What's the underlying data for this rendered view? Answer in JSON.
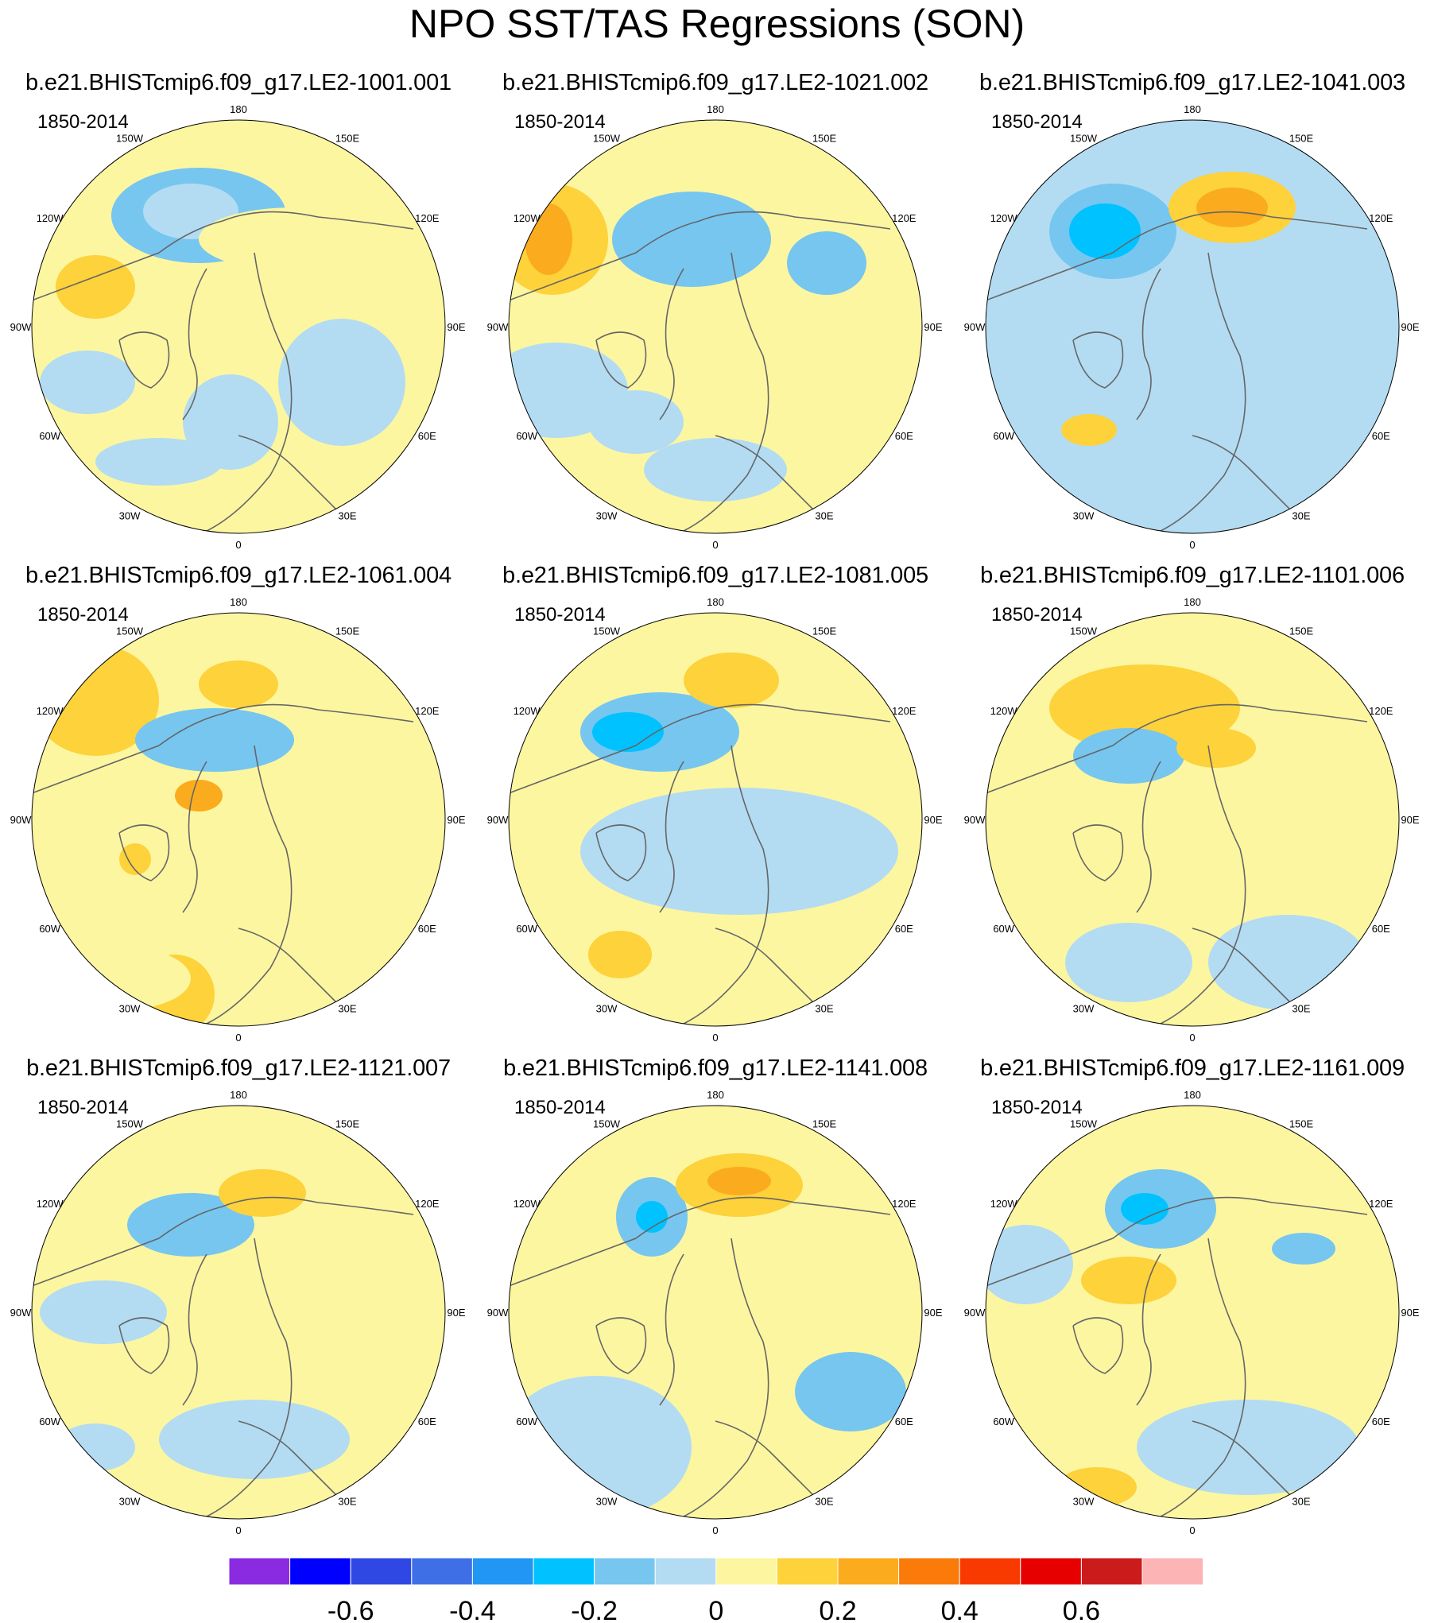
{
  "title": "NPO SST/TAS Regressions (SON)",
  "period": "1850-2014",
  "colors": {
    "neg6": "#8a2be2",
    "neg5": "#0000ff",
    "neg4": "#2f47e3",
    "neg3": "#3e6fe6",
    "neg2": "#2196f3",
    "neg1": "#00c2ff",
    "neg0b": "#76c6f0",
    "neg0": "#b3dcf2",
    "pos0": "#fdf6a0",
    "pos1": "#fdd23a",
    "pos2": "#fbab1e",
    "pos3": "#fa7b0a",
    "pos4": "#f93a00",
    "pos5": "#e60000",
    "pos6": "#cc1b1b",
    "pos7": "#fcb4b4",
    "land": "#ffffff"
  },
  "longitude_labels": [
    "180",
    "150E",
    "120E",
    "90E",
    "60E",
    "30E",
    "0",
    "30W",
    "60W",
    "90W",
    "120W",
    "150W"
  ],
  "panels": [
    {
      "title": "b.e21.BHISTcmip6.f09_g17.LE2-1001.001",
      "period": "1850-2014"
    },
    {
      "title": "b.e21.BHISTcmip6.f09_g17.LE2-1021.002",
      "period": "1850-2014"
    },
    {
      "title": "b.e21.BHISTcmip6.f09_g17.LE2-1041.003",
      "period": "1850-2014"
    },
    {
      "title": "b.e21.BHISTcmip6.f09_g17.LE2-1061.004",
      "period": "1850-2014"
    },
    {
      "title": "b.e21.BHISTcmip6.f09_g17.LE2-1081.005",
      "period": "1850-2014"
    },
    {
      "title": "b.e21.BHISTcmip6.f09_g17.LE2-1101.006",
      "period": "1850-2014"
    },
    {
      "title": "b.e21.BHISTcmip6.f09_g17.LE2-1121.007",
      "period": "1850-2014"
    },
    {
      "title": "b.e21.BHISTcmip6.f09_g17.LE2-1141.008",
      "period": "1850-2014"
    },
    {
      "title": "b.e21.BHISTcmip6.f09_g17.LE2-1161.009",
      "period": "1850-2014"
    }
  ],
  "colorbar": {
    "colors": [
      "#8a2be2",
      "#0000ff",
      "#2f47e3",
      "#3e6fe6",
      "#2196f3",
      "#00c2ff",
      "#76c6f0",
      "#b3dcf2",
      "#fdf6a0",
      "#fdd23a",
      "#fbab1e",
      "#fa7b0a",
      "#f93a00",
      "#e60000",
      "#cc1b1b",
      "#fcb4b4"
    ],
    "labels": [
      "-0.6",
      "-0.4",
      "-0.2",
      "0",
      "0.2",
      "0.4",
      "0.6"
    ]
  }
}
